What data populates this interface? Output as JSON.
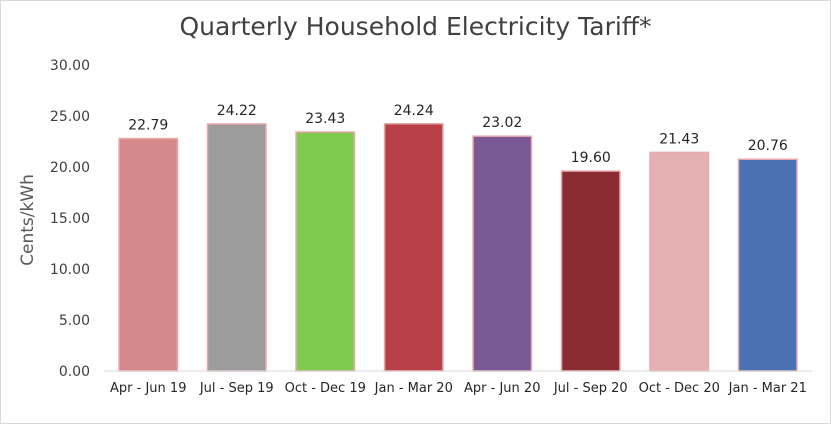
{
  "chart_data": {
    "type": "bar",
    "title": "Quarterly Household Electricity Tariff*",
    "xlabel": "",
    "ylabel": "Cents/kWh",
    "ylim": [
      0,
      30
    ],
    "yticks": [
      "0.00",
      "5.00",
      "10.00",
      "15.00",
      "20.00",
      "25.00",
      "30.00"
    ],
    "grid": false,
    "categories": [
      "Apr - Jun 19",
      "Jul - Sep 19",
      "Oct - Dec 19",
      "Jan - Mar 20",
      "Apr - Jun 20",
      "Jul - Sep 20",
      "Oct - Dec 20",
      "Jan - Mar 21"
    ],
    "values": [
      22.79,
      24.22,
      23.43,
      24.24,
      23.02,
      19.6,
      21.43,
      20.76
    ],
    "value_labels": [
      "22.79",
      "24.22",
      "23.43",
      "24.24",
      "23.02",
      "19.60",
      "21.43",
      "20.76"
    ],
    "colors": [
      "#d4888a",
      "#9c9c9c",
      "#7fcb4f",
      "#ba4047",
      "#7a5795",
      "#8b2b32",
      "#e5b0b2",
      "#4a72b2"
    ]
  }
}
